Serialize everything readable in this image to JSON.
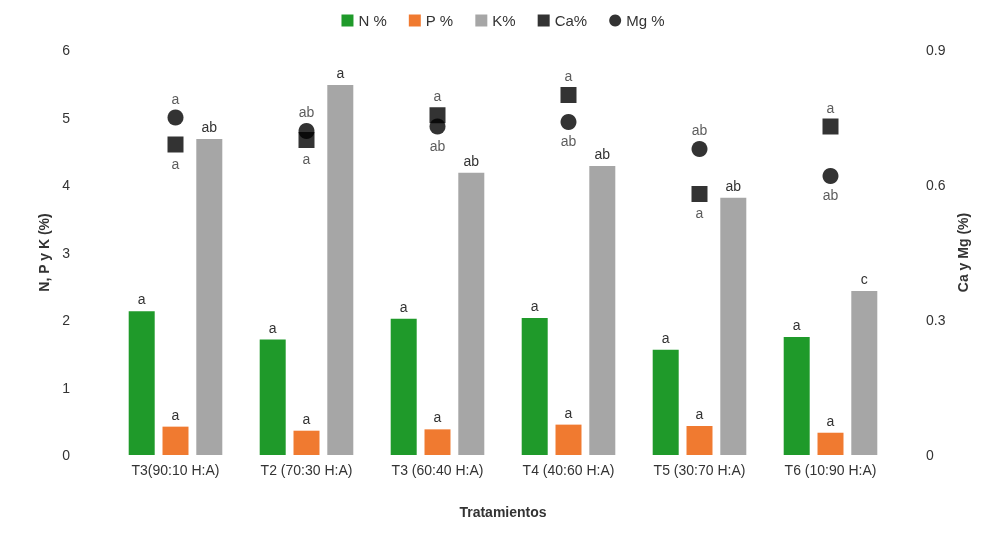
{
  "chart_data": {
    "type": "bar",
    "xlabel": "Tratamientos",
    "ylabel": "N, P y K (%)",
    "y2label": "Ca y Mg (%)",
    "categories": [
      "T3(90:10 H:A)",
      "T2 (70:30 H:A)",
      "T3 (60:40 H:A)",
      "T4 (40:60 H:A)",
      "T5 (30:70 H:A)",
      "T6 (10:90 H:A)"
    ],
    "series": [
      {
        "name": "N %",
        "color": "#1f9a2a",
        "values": [
          2.13,
          1.71,
          2.02,
          2.03,
          1.56,
          1.75
        ],
        "value_labels": [
          "a",
          "a",
          "a",
          "a",
          "a",
          "a"
        ]
      },
      {
        "name": "P %",
        "color": "#f07a30",
        "values": [
          0.42,
          0.36,
          0.38,
          0.45,
          0.43,
          0.33
        ],
        "value_labels": [
          "a",
          "a",
          "a",
          "a",
          "a",
          "a"
        ]
      },
      {
        "name": "K%",
        "color": "#a6a6a6",
        "values": [
          4.68,
          5.48,
          4.18,
          4.28,
          3.81,
          2.43
        ],
        "value_labels": [
          "ab",
          "a",
          "ab",
          "ab",
          "ab",
          "c"
        ]
      },
      {
        "name": "Ca%",
        "type": "scatter",
        "axis": "y2",
        "marker": "square",
        "color": "#000000",
        "values": [
          0.69,
          0.7,
          0.755,
          0.8,
          0.58,
          0.73
        ],
        "value_labels": [
          "a",
          "a",
          "a",
          "a",
          "a",
          "a"
        ]
      },
      {
        "name": "Mg %",
        "type": "scatter",
        "axis": "y2",
        "marker": "circle",
        "color": "#000000",
        "values": [
          0.75,
          0.72,
          0.73,
          0.74,
          0.68,
          0.62
        ],
        "value_labels": [
          "a",
          "ab",
          "ab",
          "ab",
          "ab",
          "ab"
        ]
      }
    ],
    "ylim": [
      0,
      6
    ],
    "yticks": [
      0,
      1,
      2,
      3,
      4,
      5,
      6
    ],
    "y2lim": [
      0,
      0.9
    ],
    "y2ticks": [
      0,
      0.3,
      0.6,
      0.9
    ],
    "legend": "top",
    "grid": false
  }
}
